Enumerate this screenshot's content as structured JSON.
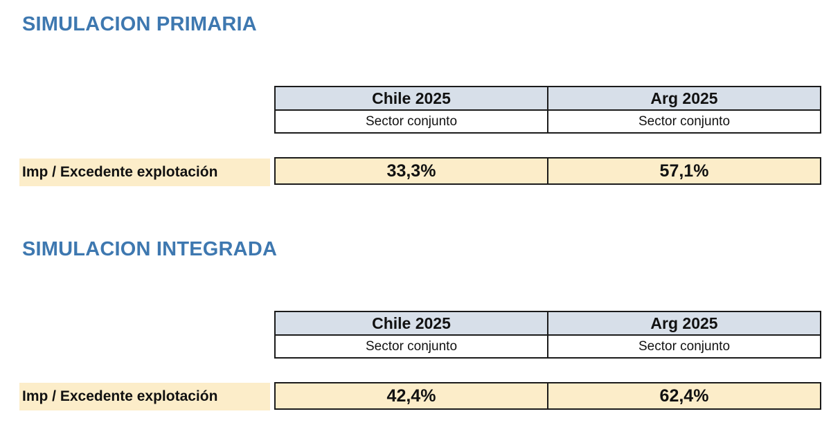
{
  "sections": [
    {
      "title": "SIMULACION PRIMARIA",
      "columns": [
        {
          "header": "Chile 2025",
          "subheader": "Sector conjunto"
        },
        {
          "header": "Arg 2025",
          "subheader": "Sector conjunto"
        }
      ],
      "row": {
        "label": "Imp / Excedente explotación",
        "values": [
          "33,3%",
          "57,1%"
        ]
      }
    },
    {
      "title": "SIMULACION INTEGRADA",
      "columns": [
        {
          "header": "Chile 2025",
          "subheader": "Sector conjunto"
        },
        {
          "header": "Arg 2025",
          "subheader": "Sector conjunto"
        }
      ],
      "row": {
        "label": "Imp / Excedente explotación",
        "values": [
          "42,4%",
          "62,4%"
        ]
      }
    }
  ],
  "colors": {
    "title": "#3e78b0",
    "header_fill": "#d7dfe9",
    "value_fill": "#fcedc9",
    "border": "#1a1a1a"
  }
}
